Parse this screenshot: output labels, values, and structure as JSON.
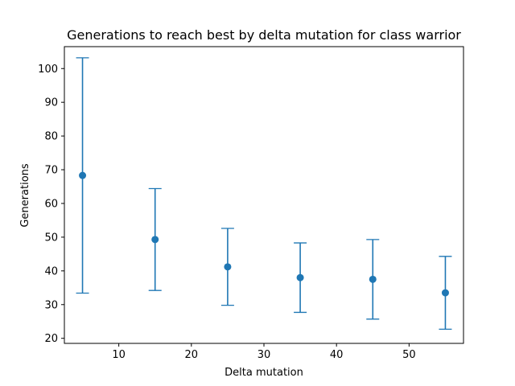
{
  "chart_data": {
    "type": "scatter",
    "title": "Generations to reach best by delta mutation for class warrior",
    "xlabel": "Delta mutation",
    "ylabel": "Generations",
    "xlim": [
      2.5,
      57.5
    ],
    "ylim": [
      18.5,
      106.5
    ],
    "xticks": [
      10,
      20,
      30,
      40,
      50
    ],
    "yticks": [
      20,
      30,
      40,
      50,
      60,
      70,
      80,
      90,
      100
    ],
    "grid": false,
    "color": "#1f77b4",
    "series": [
      {
        "points": [
          {
            "x": 5,
            "y": 68.3,
            "err": 34.9
          },
          {
            "x": 15,
            "y": 49.3,
            "err": 15.1
          },
          {
            "x": 25,
            "y": 41.2,
            "err": 11.4
          },
          {
            "x": 35,
            "y": 38.0,
            "err": 10.3
          },
          {
            "x": 45,
            "y": 37.5,
            "err": 11.8
          },
          {
            "x": 55,
            "y": 33.5,
            "err": 10.8
          }
        ]
      }
    ]
  }
}
